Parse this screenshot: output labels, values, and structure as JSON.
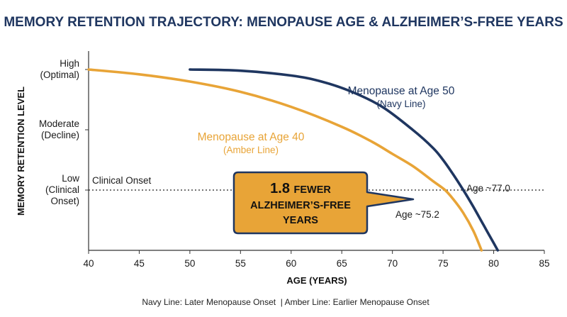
{
  "chart_data": {
    "type": "line",
    "title": "MEMORY RETENTION TRAJECTORY: MENOPAUSE AGE & ALZHEIMER’S-FREE YEARS",
    "xlabel": "AGE (YEARS)",
    "ylabel": "MEMORY RETENTION LEVEL",
    "xlim": [
      40,
      85
    ],
    "xticks": [
      40,
      45,
      50,
      55,
      60,
      65,
      70,
      75,
      80,
      85
    ],
    "ylim": [
      0,
      3
    ],
    "yticks": [
      {
        "value": 3,
        "lines": [
          "High",
          "(Optimal)"
        ]
      },
      {
        "value": 2,
        "lines": [
          "Moderate",
          "(Decline)"
        ]
      },
      {
        "value": 1,
        "lines": [
          "Low",
          "(Clinical",
          "Onset)"
        ]
      }
    ],
    "series": [
      {
        "name": "Menopause at Age 40",
        "subtitle": "(Amber Line)",
        "color": "#e8a437",
        "x": [
          40,
          45,
          50,
          55,
          60,
          65,
          68,
          70,
          72,
          74,
          75.2,
          76,
          77,
          78,
          78.8
        ],
        "y": [
          3.0,
          2.92,
          2.8,
          2.63,
          2.38,
          2.05,
          1.8,
          1.6,
          1.4,
          1.15,
          1.0,
          0.85,
          0.62,
          0.32,
          0.0
        ]
      },
      {
        "name": "Menopause at Age 50",
        "subtitle": "(Navy Line)",
        "color": "#1f3660",
        "x": [
          50,
          55,
          60,
          63,
          66,
          69,
          72,
          74,
          75,
          76,
          77,
          78,
          79,
          80,
          80.4
        ],
        "y": [
          3.0,
          2.98,
          2.9,
          2.8,
          2.63,
          2.38,
          2.0,
          1.7,
          1.5,
          1.26,
          1.0,
          0.72,
          0.42,
          0.12,
          0.0
        ]
      }
    ],
    "threshold": {
      "y": 1,
      "label": "Clinical Onset"
    },
    "annotations": {
      "navy_age": "Age ~77.0",
      "amber_age": "Age ~75.2"
    },
    "callout": {
      "number": "1.8",
      "line1_rest": "FEWER",
      "line2": "ALZHEIMER’S-FREE",
      "line3": "YEARS",
      "fill": "#e8a437",
      "border": "#1f3660"
    },
    "footnote": "Navy Line: Later Menopause Onset  | Amber Line: Earlier Menopause Onset"
  }
}
